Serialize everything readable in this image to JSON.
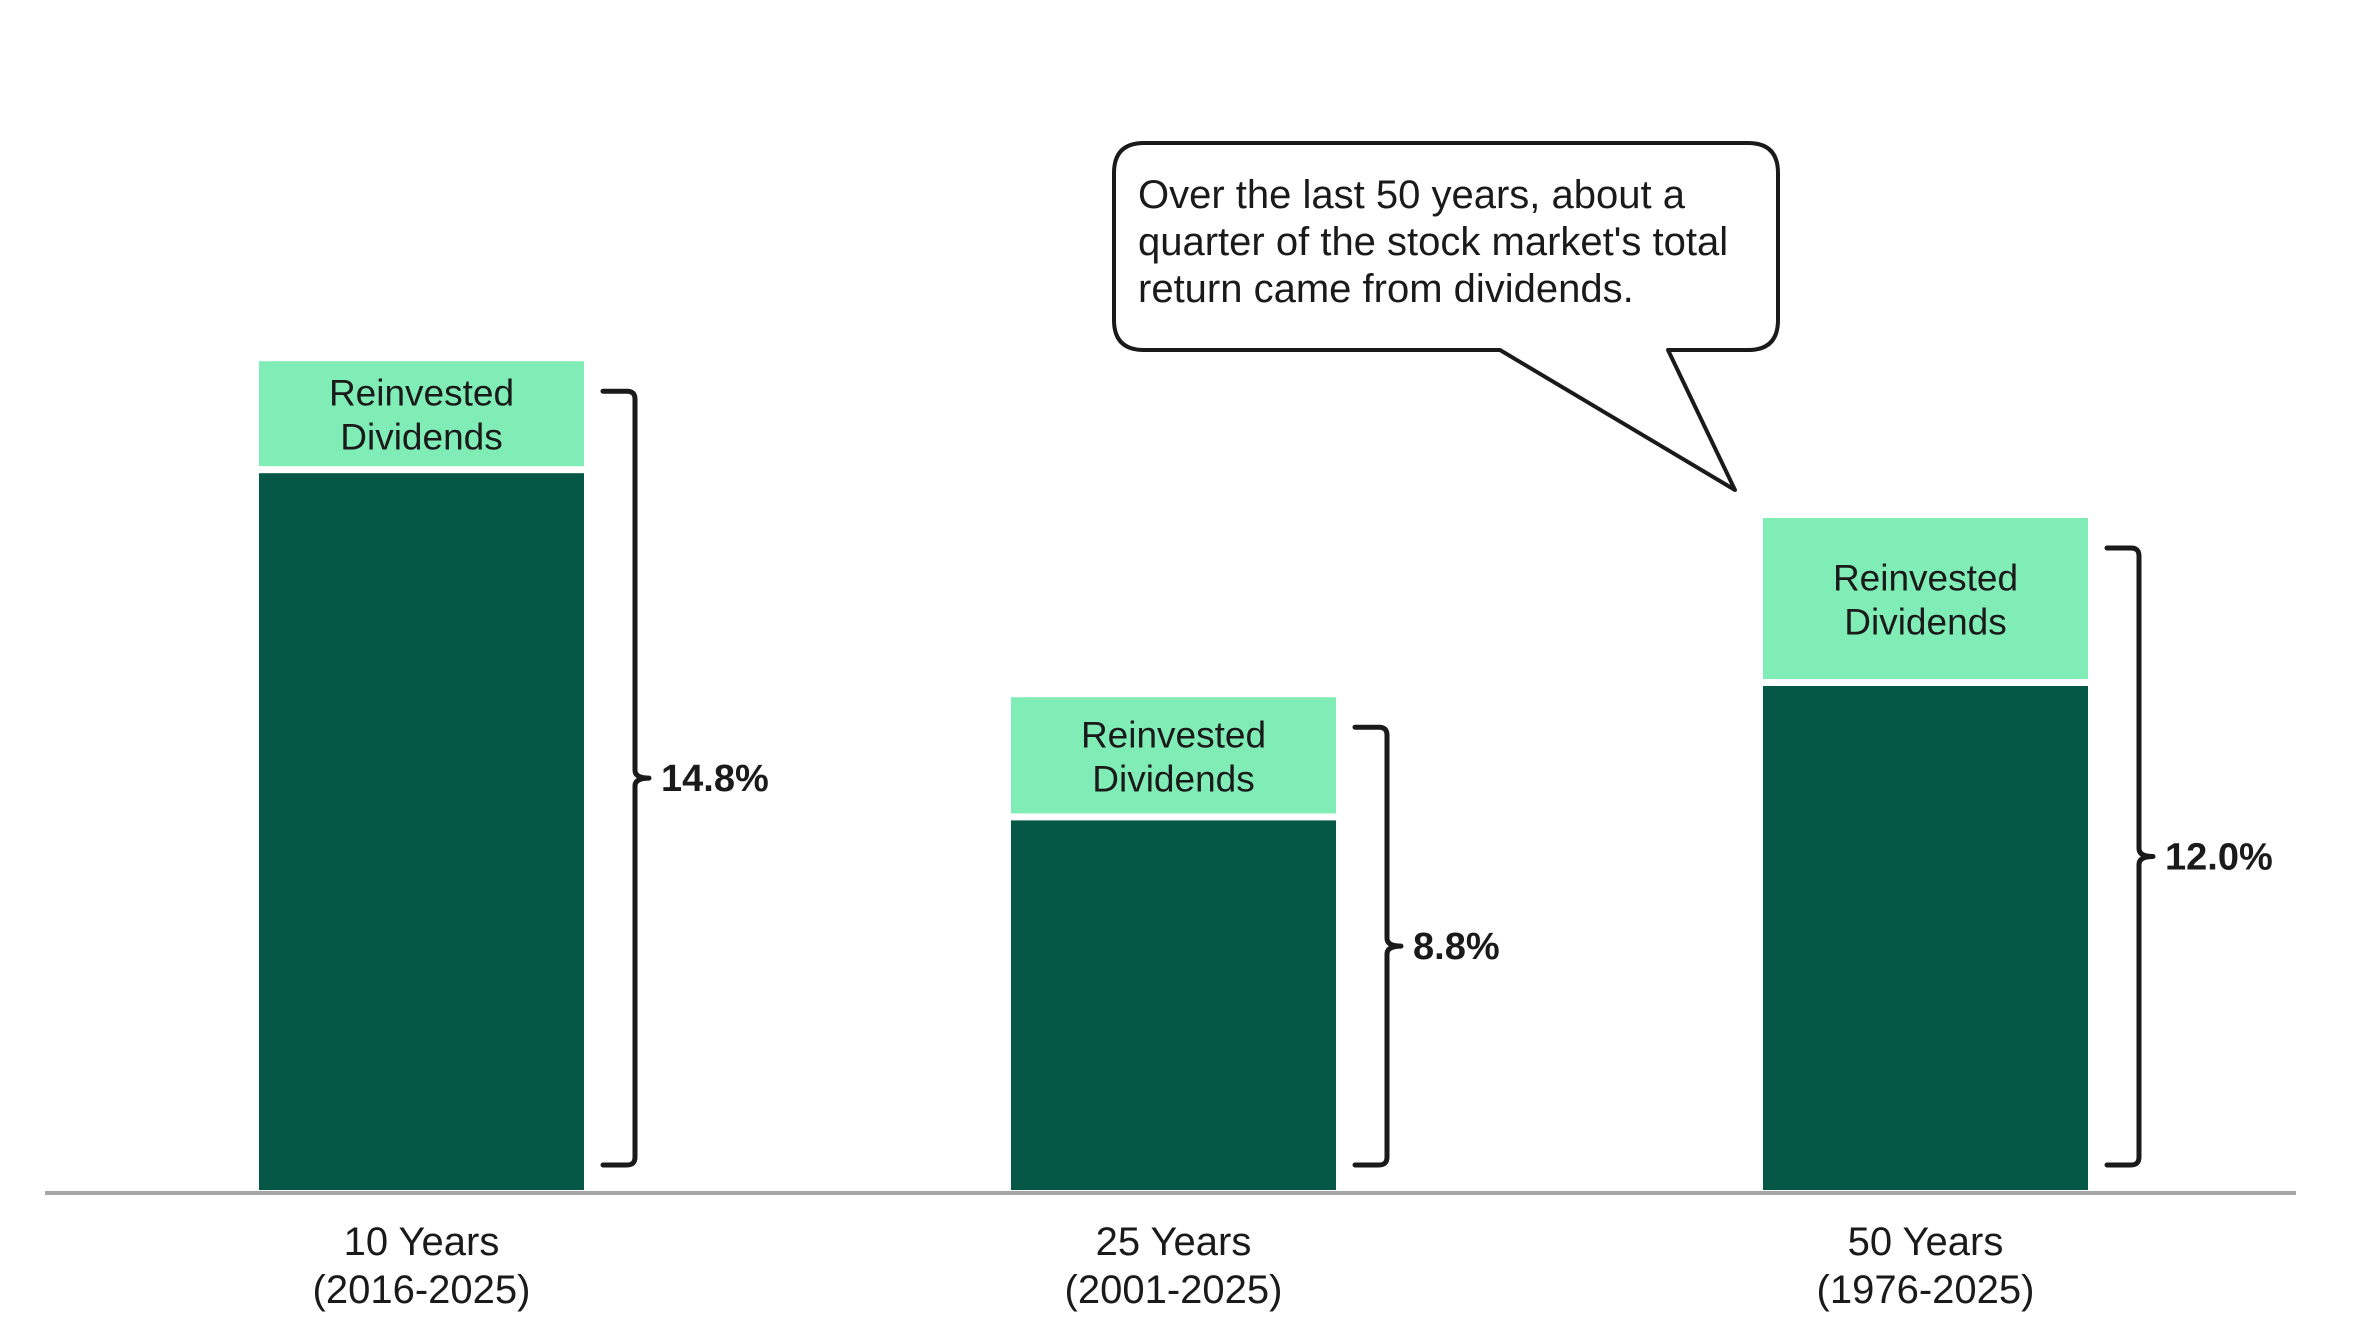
{
  "chart_data": {
    "type": "bar",
    "stacked": true,
    "categories": [
      {
        "line1": "10 Years",
        "line2": "(2016-2025)"
      },
      {
        "line1": "25 Years",
        "line2": "(2001-2025)"
      },
      {
        "line1": "50 Years",
        "line2": "(1976-2025)"
      }
    ],
    "totals": [
      14.8,
      8.8,
      12.0
    ],
    "total_labels": [
      "14.8%",
      "8.8%",
      "12.0%"
    ],
    "series": [
      {
        "values": [
          12.8,
          6.6,
          9.0
        ]
      },
      {
        "name": "Reinvested Dividends",
        "values": [
          2.0,
          2.2,
          3.0
        ]
      }
    ],
    "segment_label_lines": [
      "Reinvested",
      "Dividends"
    ],
    "ylim": [
      0,
      16
    ],
    "grid": false,
    "colors": {
      "price": "#055846",
      "dividends": "#80edb6",
      "axis": "#a6a6a6",
      "bracket": "#1a1a1a",
      "text": "#1a1a1a"
    },
    "annotation": {
      "lines": [
        "Over the last 50 years, about a",
        "quarter of the stock market's total",
        "return came from dividends."
      ],
      "points_to": "50 Years"
    }
  }
}
